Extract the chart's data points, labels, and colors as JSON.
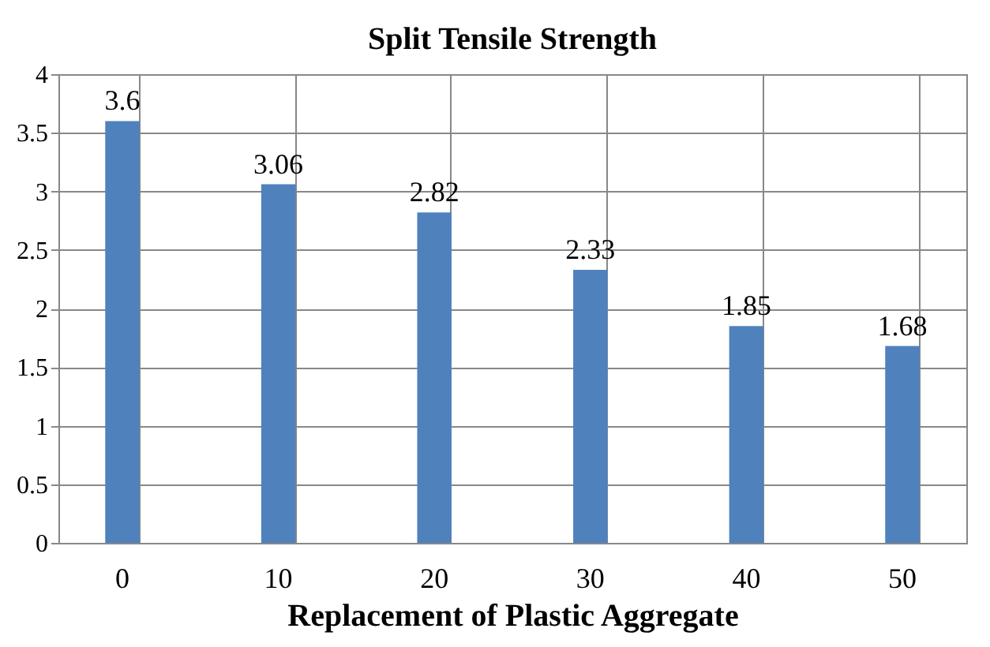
{
  "chart_data": {
    "type": "bar",
    "title": "Split Tensile Strength",
    "xlabel": "Replacement of Plastic Aggregate",
    "categories": [
      "0",
      "10",
      "20",
      "30",
      "40",
      "50"
    ],
    "values": [
      3.6,
      3.06,
      2.82,
      2.33,
      1.85,
      1.68
    ],
    "color": "#4f81bd",
    "ylim": [
      0,
      4
    ],
    "yticks": [
      0,
      0.5,
      1,
      1.5,
      2,
      2.5,
      3,
      3.5,
      4
    ],
    "grid": true,
    "data_labels": true
  }
}
